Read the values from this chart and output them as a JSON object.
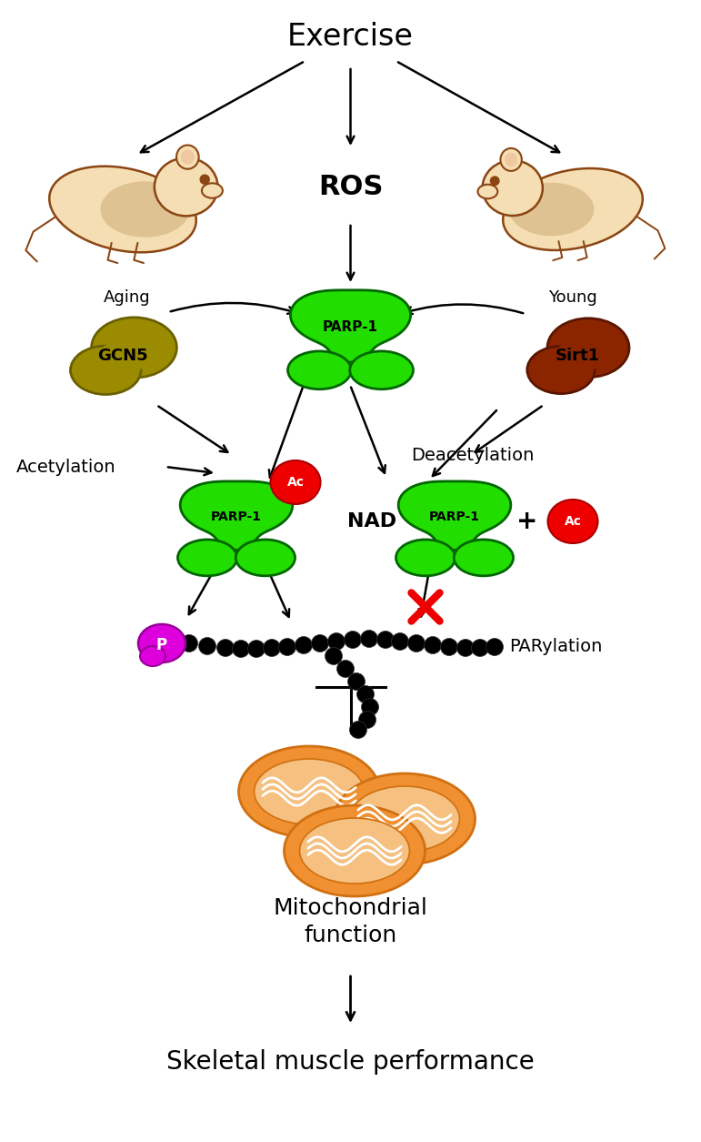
{
  "bg_color": "#ffffff",
  "exercise_text": "Exercise",
  "ros_text": "ROS",
  "aging_text": "Aging",
  "young_text": "Young",
  "gcn5_text": "GCN5",
  "sirt1_text": "Sirt1",
  "parp1_center_text": "PARP-1",
  "parp1_left_text": "PARP-1",
  "parp1_right_text": "PARP-1",
  "acetylation_text": "Acetylation",
  "deacetylation_text": "Deacetylation",
  "nad_text": "NAD",
  "nad_sup": "+",
  "parylation_text": "PARylation",
  "p_text": "P",
  "ac_text": "Ac",
  "mito_text": "Mitochondrial\nfunction",
  "skeletal_text": "Skeletal muscle performance",
  "green_color": "#22dd00",
  "dark_green_edge": "#006600",
  "green_dark_shade": "#15aa00",
  "olive_color": "#9B8B00",
  "olive_edge": "#6a5f00",
  "brown_color": "#8B2500",
  "brown_edge": "#5a1500",
  "red_color": "#ee0000",
  "magenta_color": "#dd00dd",
  "orange_color": "#F09030",
  "orange_dark": "#d07010",
  "orange_inner": "#F5C080",
  "black": "#000000",
  "mouse_body_light": "#F5DEB3",
  "mouse_body_dark": "#C8A870",
  "mouse_outline": "#8B4513"
}
